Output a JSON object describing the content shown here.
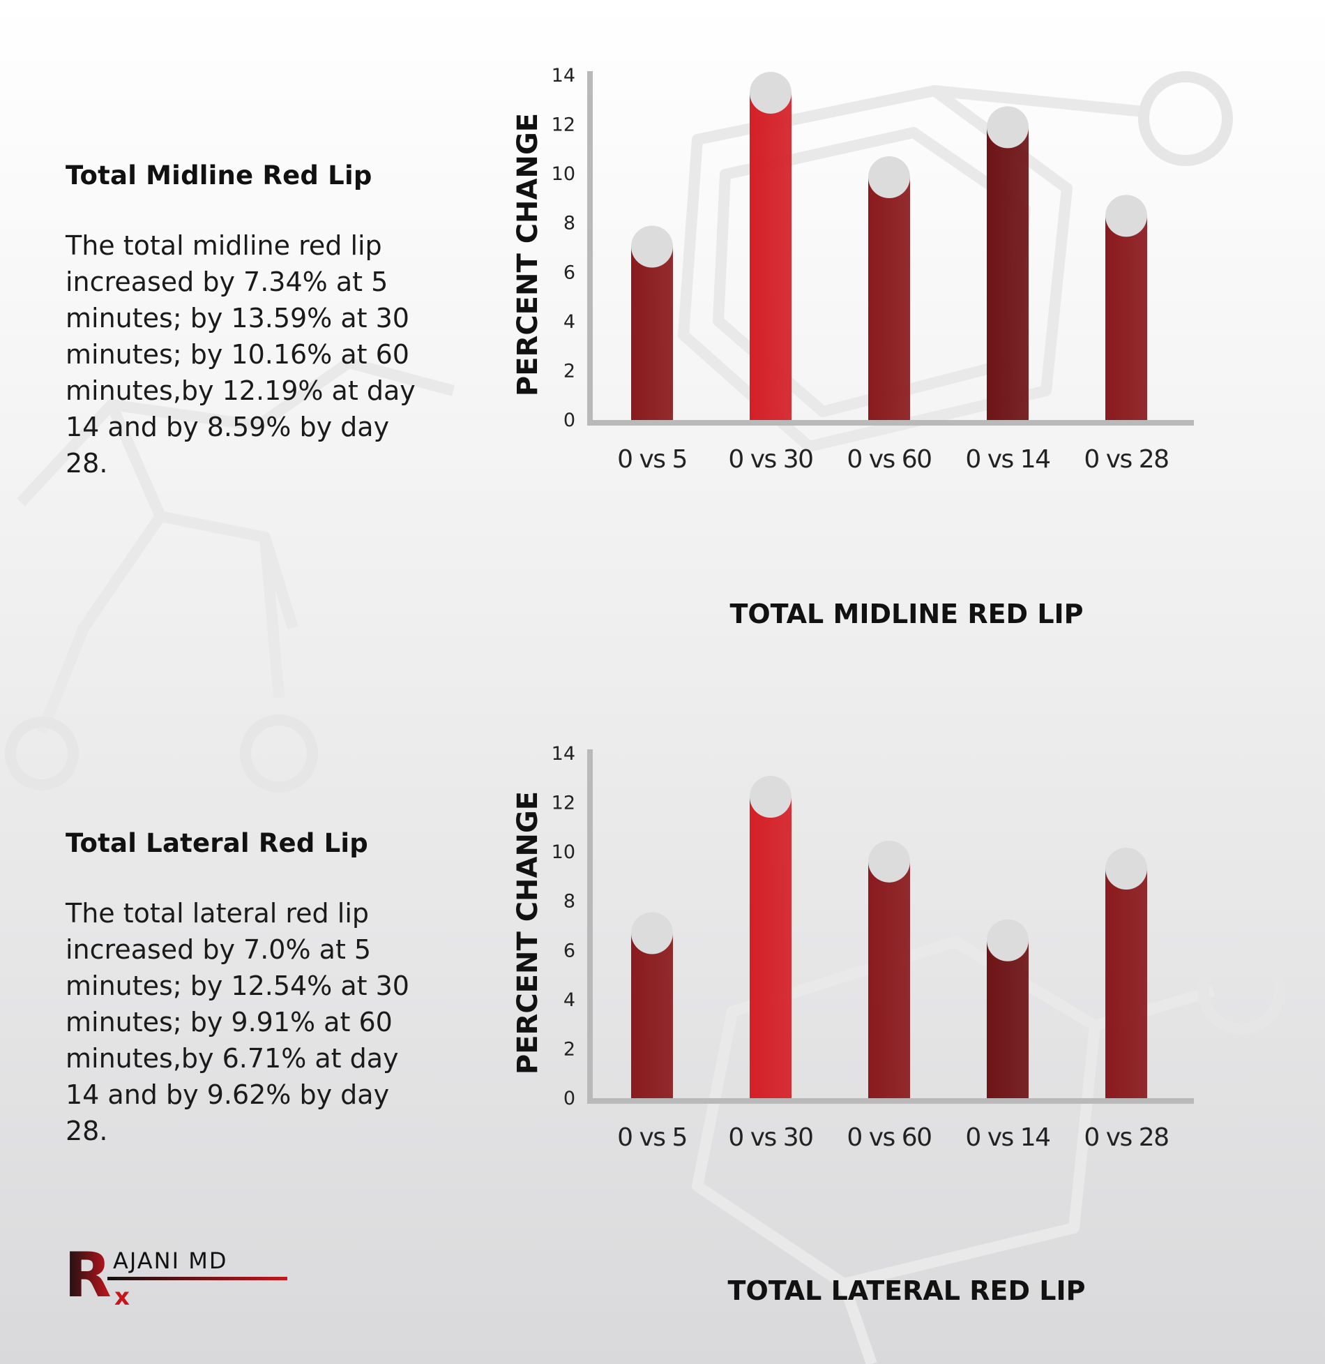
{
  "panels": [
    {
      "heading": "Total Midline Red Lip",
      "body": "The total midline red lip increased by 7.34% at 5 minutes; by 13.59% at 30 minutes; by 10.16% at 60 minutes,by 12.19% at day 14 and by 8.59% by day 28."
    },
    {
      "heading": "Total Lateral Red Lip",
      "body": "The total lateral red lip increased by 7.0% at 5 minutes; by 12.54% at 30 minutes; by 9.91% at 60 minutes,by 6.71% at day 14 and by 9.62% by day 28."
    }
  ],
  "logo": {
    "letters": "AJANI MD"
  },
  "colors": {
    "bar_dark": "#6e1417",
    "bar_mid": "#8a1a1d",
    "bar_bright": "#d42027",
    "bar_cap": "#dddcdc",
    "axis": "#b9b9b9"
  },
  "chart_data": [
    {
      "type": "bar",
      "title": "",
      "xlabel": "TOTAL MIDLINE RED LIP",
      "ylabel": "PERCENT CHANGE",
      "categories": [
        "0 vs 5",
        "0 vs 30",
        "0 vs 60",
        "0 vs 14",
        "0 vs 28"
      ],
      "values": [
        7.34,
        13.59,
        10.16,
        12.19,
        8.59
      ],
      "ylim": [
        0,
        14
      ],
      "yticks": [
        "0",
        "2",
        "4",
        "6",
        "8",
        "10",
        "12",
        "14"
      ],
      "grid": false,
      "legend": "none"
    },
    {
      "type": "bar",
      "title": "",
      "xlabel": "TOTAL LATERAL RED LIP",
      "ylabel": "PERCENT CHANGE",
      "categories": [
        "0 vs 5",
        "0 vs 30",
        "0 vs 60",
        "0 vs 14",
        "0 vs 28"
      ],
      "values": [
        7.0,
        12.54,
        9.91,
        6.71,
        9.62
      ],
      "ylim": [
        0,
        14
      ],
      "yticks": [
        "0",
        "2",
        "4",
        "6",
        "8",
        "10",
        "12",
        "14"
      ],
      "grid": false,
      "legend": "none"
    }
  ]
}
